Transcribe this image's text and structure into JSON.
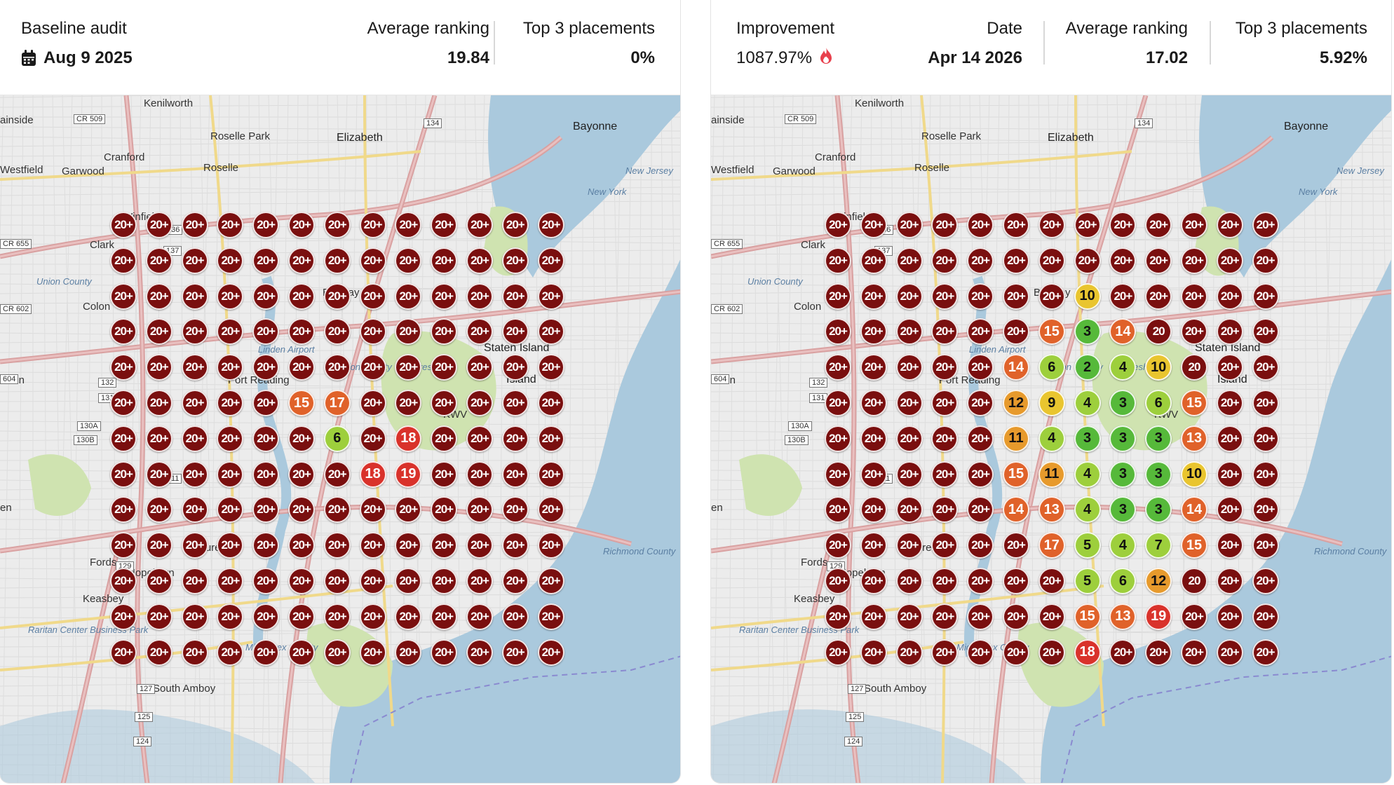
{
  "colors": {
    "pin_20plus": "#7a0f0f",
    "rank_hot": "#d9322b",
    "rank_orange": "#e0622a",
    "rank_amber": "#e79a2c",
    "rank_yellow": "#e9c52f",
    "rank_lime": "#9dcf3c",
    "rank_green": "#56b93a",
    "water": "#aac9dd",
    "land": "#ececec",
    "park": "#cfe3b0"
  },
  "map_labels": [
    "Kenilworth",
    "Roselle Park",
    "Elizabeth",
    "Bayonne",
    "Cranford",
    "Roselle",
    "Westfield",
    "Garwood",
    "Winfield",
    "Clark",
    "Union County",
    "Colon",
    "Iselin",
    "Port Reading",
    "Staten Island",
    "Island",
    "Fords",
    "Hopelawn",
    "Keasbey",
    "Maurer",
    "Raritan Center Business Park",
    "South Amboy",
    "Richmond County",
    "New Jersey",
    "New York",
    "Middlesex County",
    "Union County",
    "Freshkills",
    "Linden Airport",
    "Bayway",
    "KWV",
    "ainside",
    "en",
    "CR 509",
    "CR 655",
    "CR 602",
    "604",
    "137",
    "136",
    "134",
    "132",
    "131",
    "130A",
    "130B",
    "127",
    "125",
    "124",
    "129",
    "11"
  ],
  "left": {
    "stats": [
      {
        "label": "Baseline audit",
        "value": "Aug 9 2025",
        "icon": "calendar-icon"
      },
      {
        "label": "Average ranking",
        "value": "19.84"
      },
      {
        "label": "Top 3 placements",
        "value": "0%"
      }
    ],
    "grid": [
      [
        "20+",
        "20+",
        "20+",
        "20+",
        "20+",
        "20+",
        "20+",
        "20+",
        "20+",
        "20+",
        "20+",
        "20+",
        "20+"
      ],
      [
        "20+",
        "20+",
        "20+",
        "20+",
        "20+",
        "20+",
        "20+",
        "20+",
        "20+",
        "20+",
        "20+",
        "20+",
        "20+"
      ],
      [
        "20+",
        "20+",
        "20+",
        "20+",
        "20+",
        "20+",
        "20+",
        "20+",
        "20+",
        "20+",
        "20+",
        "20+",
        "20+"
      ],
      [
        "20+",
        "20+",
        "20+",
        "20+",
        "20+",
        "20+",
        "20+",
        "20+",
        "20+",
        "20+",
        "20+",
        "20+",
        "20+"
      ],
      [
        "20+",
        "20+",
        "20+",
        "20+",
        "20+",
        "20+",
        "20+",
        "20+",
        "20+",
        "20+",
        "20+",
        "20+",
        "20+"
      ],
      [
        "20+",
        "20+",
        "20+",
        "20+",
        "20+",
        "15",
        "17",
        "20+",
        "20+",
        "20+",
        "20+",
        "20+",
        "20+"
      ],
      [
        "20+",
        "20+",
        "20+",
        "20+",
        "20+",
        "20+",
        "6",
        "20+",
        "18",
        "20+",
        "20+",
        "20+",
        "20+"
      ],
      [
        "20+",
        "20+",
        "20+",
        "20+",
        "20+",
        "20+",
        "20+",
        "18",
        "19",
        "20+",
        "20+",
        "20+",
        "20+"
      ],
      [
        "20+",
        "20+",
        "20+",
        "20+",
        "20+",
        "20+",
        "20+",
        "20+",
        "20+",
        "20+",
        "20+",
        "20+",
        "20+"
      ],
      [
        "20+",
        "20+",
        "20+",
        "20+",
        "20+",
        "20+",
        "20+",
        "20+",
        "20+",
        "20+",
        "20+",
        "20+",
        "20+"
      ],
      [
        "20+",
        "20+",
        "20+",
        "20+",
        "20+",
        "20+",
        "20+",
        "20+",
        "20+",
        "20+",
        "20+",
        "20+",
        "20+"
      ],
      [
        "20+",
        "20+",
        "20+",
        "20+",
        "20+",
        "20+",
        "20+",
        "20+",
        "20+",
        "20+",
        "20+",
        "20+",
        "20+"
      ],
      [
        "20+",
        "20+",
        "20+",
        "20+",
        "20+",
        "20+",
        "20+",
        "20+",
        "20+",
        "20+",
        "20+",
        "20+",
        "20+"
      ]
    ]
  },
  "right": {
    "stats": [
      {
        "label": "Improvement",
        "value": "1087.97%",
        "icon": "flame-icon"
      },
      {
        "label": "Date",
        "value": "Apr 14 2026"
      },
      {
        "label": "Average ranking",
        "value": "17.02"
      },
      {
        "label": "Top 3 placements",
        "value": "5.92%"
      }
    ],
    "grid": [
      [
        "20+",
        "20+",
        "20+",
        "20+",
        "20+",
        "20+",
        "20+",
        "20+",
        "20+",
        "20+",
        "20+",
        "20+",
        "20+"
      ],
      [
        "20+",
        "20+",
        "20+",
        "20+",
        "20+",
        "20+",
        "20+",
        "20+",
        "20+",
        "20+",
        "20+",
        "20+",
        "20+"
      ],
      [
        "20+",
        "20+",
        "20+",
        "20+",
        "20+",
        "20+",
        "20+",
        "10",
        "20+",
        "20+",
        "20+",
        "20+",
        "20+"
      ],
      [
        "20+",
        "20+",
        "20+",
        "20+",
        "20+",
        "20+",
        "15",
        "3",
        "14",
        "20",
        "20+",
        "20+",
        "20+"
      ],
      [
        "20+",
        "20+",
        "20+",
        "20+",
        "20+",
        "14",
        "6",
        "2",
        "4",
        "10",
        "20",
        "20+",
        "20+"
      ],
      [
        "20+",
        "20+",
        "20+",
        "20+",
        "20+",
        "12",
        "9",
        "4",
        "3",
        "6",
        "15",
        "20+",
        "20+"
      ],
      [
        "20+",
        "20+",
        "20+",
        "20+",
        "20+",
        "11",
        "4",
        "3",
        "3",
        "3",
        "13",
        "20+",
        "20+"
      ],
      [
        "20+",
        "20+",
        "20+",
        "20+",
        "20+",
        "15",
        "11",
        "4",
        "3",
        "3",
        "10",
        "20+",
        "20+"
      ],
      [
        "20+",
        "20+",
        "20+",
        "20+",
        "20+",
        "14",
        "13",
        "4",
        "3",
        "3",
        "14",
        "20+",
        "20+"
      ],
      [
        "20+",
        "20+",
        "20+",
        "20+",
        "20+",
        "20+",
        "17",
        "5",
        "4",
        "7",
        "15",
        "20+",
        "20+"
      ],
      [
        "20+",
        "20+",
        "20+",
        "20+",
        "20+",
        "20+",
        "20+",
        "5",
        "6",
        "12",
        "20",
        "20+",
        "20+"
      ],
      [
        "20+",
        "20+",
        "20+",
        "20+",
        "20+",
        "20+",
        "20+",
        "15",
        "13",
        "19",
        "20+",
        "20+",
        "20+"
      ],
      [
        "20+",
        "20+",
        "20+",
        "20+",
        "20+",
        "20+",
        "20+",
        "18",
        "20+",
        "20+",
        "20+",
        "20+",
        "20+"
      ]
    ]
  }
}
